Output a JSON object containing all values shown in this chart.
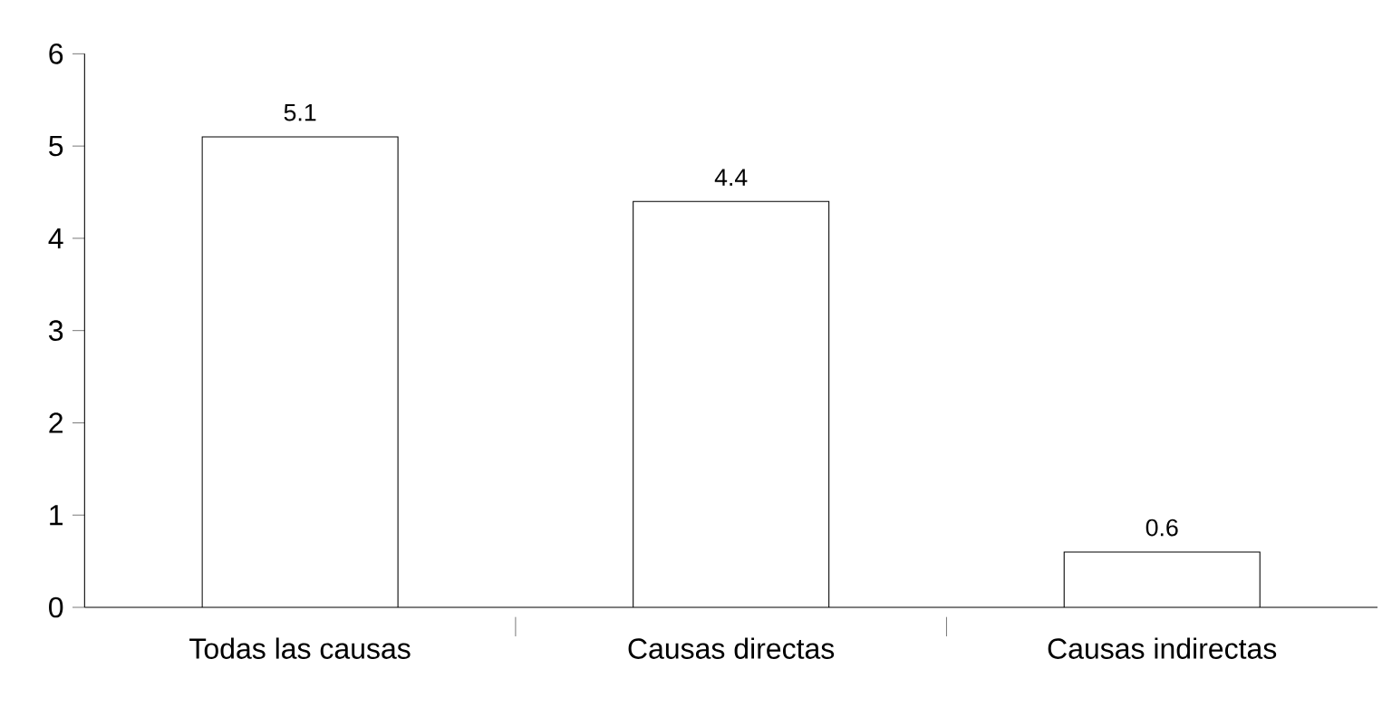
{
  "chart_data": {
    "type": "bar",
    "categories": [
      "Todas las causas",
      "Causas directas",
      "Causas indirectas"
    ],
    "values": [
      5.1,
      4.4,
      0.6
    ],
    "color": "#ffffff",
    "ylim": [
      0,
      6
    ],
    "yticks": [
      0,
      1,
      2,
      3,
      4,
      5,
      6
    ],
    "data_labels": true,
    "grid": false
  }
}
